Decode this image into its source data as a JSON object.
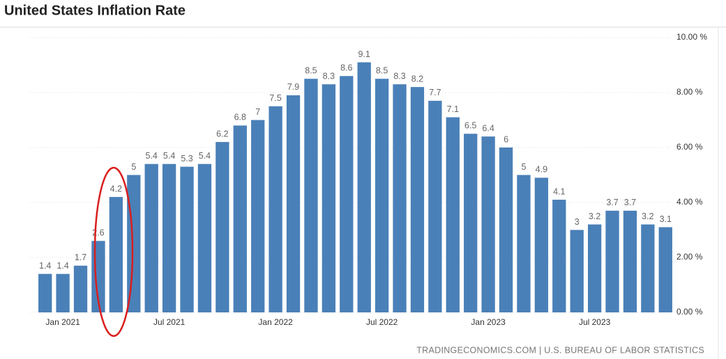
{
  "chart_data": {
    "type": "bar",
    "title": "United States Inflation Rate",
    "source": "TRADINGECONOMICS.COM | U.S. BUREAU OF LABOR STATISTICS",
    "categories": [
      null,
      "Jan 2021",
      null,
      null,
      null,
      null,
      null,
      "Jul 2021",
      null,
      null,
      null,
      null,
      null,
      "Jan 2022",
      null,
      null,
      null,
      null,
      null,
      "Jul 2022",
      null,
      null,
      null,
      null,
      null,
      "Jan 2023",
      null,
      null,
      null,
      null,
      null,
      "Jul 2023",
      null,
      null,
      null,
      null
    ],
    "values": [
      1.4,
      1.4,
      1.7,
      2.6,
      4.2,
      5,
      5.4,
      5.4,
      5.3,
      5.4,
      6.2,
      6.8,
      7,
      7.5,
      7.9,
      8.5,
      8.3,
      8.6,
      9.1,
      8.5,
      8.3,
      8.2,
      7.7,
      7.1,
      6.5,
      6.4,
      6,
      5,
      4.9,
      4.1,
      3,
      3.2,
      3.7,
      3.7,
      3.2,
      3.1
    ],
    "color": "#4a80b8",
    "ylim": [
      0,
      10
    ],
    "yticks": [
      {
        "value": 0,
        "label": "0.00 %"
      },
      {
        "value": 2,
        "label": "2.00 %"
      },
      {
        "value": 4,
        "label": "4.00 %"
      },
      {
        "value": 6,
        "label": "6.00 %"
      },
      {
        "value": 8,
        "label": "8.00 %"
      },
      {
        "value": 10,
        "label": "10.00 %"
      }
    ],
    "grid": true
  }
}
